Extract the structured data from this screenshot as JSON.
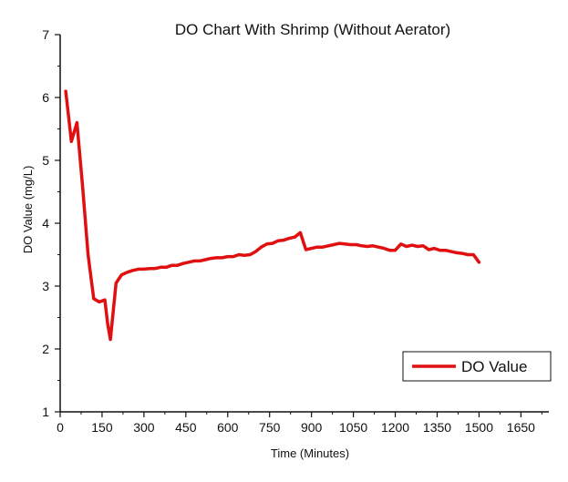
{
  "chart_data": {
    "type": "line",
    "title": "DO Chart With Shrimp (Without Aerator)",
    "xlabel": "Time (Minutes)",
    "ylabel": "DO Value (mg/L)",
    "xlim": [
      0,
      1750
    ],
    "ylim": [
      1,
      7
    ],
    "xticks": [
      0,
      150,
      300,
      450,
      600,
      750,
      900,
      1050,
      1200,
      1350,
      1500,
      1650
    ],
    "yticks": [
      1,
      2,
      3,
      4,
      5,
      6,
      7
    ],
    "grid": false,
    "legend": {
      "position": "bottom-right",
      "entries": [
        "DO Value"
      ]
    },
    "colors": {
      "series": "#e01010",
      "axis": "#111111"
    },
    "series": [
      {
        "name": "DO Value",
        "x": [
          20,
          40,
          60,
          80,
          100,
          120,
          140,
          160,
          170,
          180,
          200,
          220,
          240,
          260,
          280,
          300,
          320,
          340,
          360,
          380,
          400,
          420,
          440,
          460,
          480,
          500,
          520,
          540,
          560,
          580,
          600,
          620,
          640,
          660,
          680,
          700,
          720,
          740,
          760,
          780,
          800,
          820,
          840,
          860,
          880,
          900,
          920,
          940,
          960,
          980,
          1000,
          1020,
          1040,
          1060,
          1080,
          1100,
          1120,
          1140,
          1160,
          1180,
          1200,
          1220,
          1240,
          1260,
          1280,
          1300,
          1320,
          1340,
          1360,
          1380,
          1400,
          1420,
          1440,
          1460,
          1480,
          1500
        ],
        "values": [
          6.1,
          5.3,
          5.6,
          4.6,
          3.5,
          2.8,
          2.75,
          2.78,
          2.4,
          2.15,
          3.05,
          3.18,
          3.22,
          3.25,
          3.27,
          3.27,
          3.28,
          3.28,
          3.3,
          3.3,
          3.33,
          3.33,
          3.36,
          3.38,
          3.4,
          3.4,
          3.42,
          3.44,
          3.45,
          3.45,
          3.47,
          3.47,
          3.5,
          3.49,
          3.5,
          3.55,
          3.62,
          3.67,
          3.68,
          3.72,
          3.73,
          3.76,
          3.78,
          3.85,
          3.58,
          3.6,
          3.62,
          3.62,
          3.64,
          3.66,
          3.68,
          3.67,
          3.66,
          3.66,
          3.64,
          3.63,
          3.64,
          3.62,
          3.6,
          3.57,
          3.57,
          3.67,
          3.63,
          3.65,
          3.63,
          3.64,
          3.58,
          3.6,
          3.57,
          3.57,
          3.55,
          3.53,
          3.52,
          3.5,
          3.5,
          3.38
        ]
      }
    ]
  }
}
